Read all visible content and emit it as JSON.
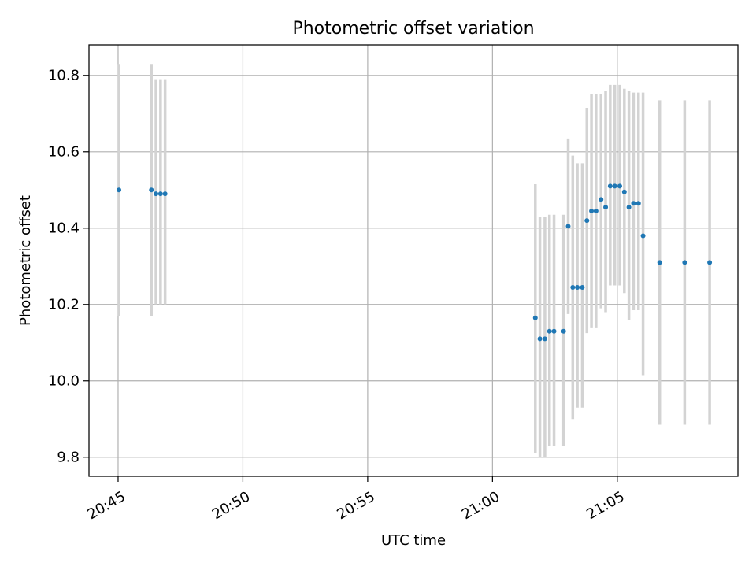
{
  "chart_data": {
    "type": "scatter",
    "title": "Photometric offset variation",
    "xlabel": "UTC time",
    "ylabel": "Photometric offset",
    "x_axis_kind": "time",
    "x_range": [
      "20:43:50",
      "21:09:50"
    ],
    "ylim": [
      9.75,
      10.88
    ],
    "x_ticks": [
      "20:45",
      "20:50",
      "20:55",
      "21:00",
      "21:05"
    ],
    "y_ticks": [
      "9.8",
      "10.0",
      "10.2",
      "10.4",
      "10.6",
      "10.8"
    ],
    "grid": true,
    "legend": "none",
    "colors": {
      "points": "#1f77b4",
      "error_bars": "#d3d3d3",
      "grid": "#b0b0b0"
    },
    "series": [
      {
        "points": [
          {
            "x": "20:45:02",
            "y": 10.5,
            "y_low": 10.17,
            "y_high": 10.83
          },
          {
            "x": "20:46:20",
            "y": 10.5,
            "y_low": 10.17,
            "y_high": 10.83
          },
          {
            "x": "20:46:31",
            "y": 10.49,
            "y_low": 10.2,
            "y_high": 10.79
          },
          {
            "x": "20:46:42",
            "y": 10.49,
            "y_low": 10.2,
            "y_high": 10.79
          },
          {
            "x": "20:46:53",
            "y": 10.49,
            "y_low": 10.2,
            "y_high": 10.79
          },
          {
            "x": "21:01:43",
            "y": 10.165,
            "y_low": 9.81,
            "y_high": 10.515
          },
          {
            "x": "21:01:54",
            "y": 10.11,
            "y_low": 9.8,
            "y_high": 10.43
          },
          {
            "x": "21:02:06",
            "y": 10.11,
            "y_low": 9.8,
            "y_high": 10.43
          },
          {
            "x": "21:02:17",
            "y": 10.13,
            "y_low": 9.83,
            "y_high": 10.435
          },
          {
            "x": "21:02:28",
            "y": 10.13,
            "y_low": 9.83,
            "y_high": 10.435
          },
          {
            "x": "21:02:51",
            "y": 10.13,
            "y_low": 9.83,
            "y_high": 10.435
          },
          {
            "x": "21:03:02",
            "y": 10.405,
            "y_low": 10.175,
            "y_high": 10.635
          },
          {
            "x": "21:03:13",
            "y": 10.245,
            "y_low": 9.9,
            "y_high": 10.59
          },
          {
            "x": "21:03:24",
            "y": 10.245,
            "y_low": 9.93,
            "y_high": 10.57
          },
          {
            "x": "21:03:36",
            "y": 10.245,
            "y_low": 9.93,
            "y_high": 10.57
          },
          {
            "x": "21:03:47",
            "y": 10.42,
            "y_low": 10.125,
            "y_high": 10.715
          },
          {
            "x": "21:03:58",
            "y": 10.445,
            "y_low": 10.14,
            "y_high": 10.75
          },
          {
            "x": "21:04:09",
            "y": 10.445,
            "y_low": 10.14,
            "y_high": 10.75
          },
          {
            "x": "21:04:21",
            "y": 10.475,
            "y_low": 10.19,
            "y_high": 10.75
          },
          {
            "x": "21:04:32",
            "y": 10.455,
            "y_low": 10.18,
            "y_high": 10.76
          },
          {
            "x": "21:04:43",
            "y": 10.51,
            "y_low": 10.25,
            "y_high": 10.775
          },
          {
            "x": "21:04:54",
            "y": 10.51,
            "y_low": 10.25,
            "y_high": 10.775
          },
          {
            "x": "21:05:06",
            "y": 10.51,
            "y_low": 10.25,
            "y_high": 10.775
          },
          {
            "x": "21:05:17",
            "y": 10.495,
            "y_low": 10.23,
            "y_high": 10.765
          },
          {
            "x": "21:05:28",
            "y": 10.455,
            "y_low": 10.16,
            "y_high": 10.76
          },
          {
            "x": "21:05:39",
            "y": 10.465,
            "y_low": 10.185,
            "y_high": 10.755
          },
          {
            "x": "21:05:51",
            "y": 10.465,
            "y_low": 10.185,
            "y_high": 10.755
          },
          {
            "x": "21:06:02",
            "y": 10.38,
            "y_low": 10.015,
            "y_high": 10.755
          },
          {
            "x": "21:06:42",
            "y": 10.31,
            "y_low": 9.885,
            "y_high": 10.735
          },
          {
            "x": "21:07:42",
            "y": 10.31,
            "y_low": 9.885,
            "y_high": 10.735
          },
          {
            "x": "21:08:42",
            "y": 10.31,
            "y_low": 9.885,
            "y_high": 10.735
          }
        ]
      }
    ]
  }
}
